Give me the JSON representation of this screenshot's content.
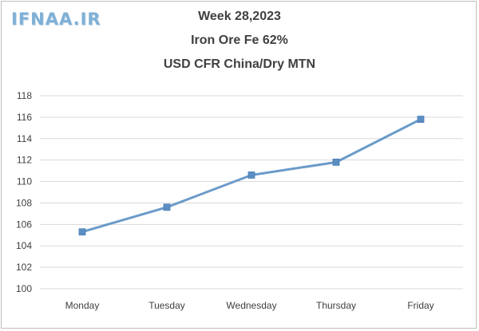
{
  "watermark": "IFNAA.IR",
  "chart_data": {
    "type": "line",
    "title_lines": [
      "Week 28,2023",
      "Iron Ore Fe 62%",
      "USD CFR China/Dry MTN"
    ],
    "categories": [
      "Monday",
      "Tuesday",
      "Wednesday",
      "Thursday",
      "Friday"
    ],
    "series": [
      {
        "values": [
          105.3,
          107.6,
          110.6,
          111.8,
          115.8
        ]
      }
    ],
    "ylim": [
      100,
      118
    ],
    "yticks": [
      "100",
      "102",
      "104",
      "106",
      "108",
      "110",
      "112",
      "114",
      "116",
      "118"
    ],
    "grid": true,
    "line_color": "#6b9bc9",
    "marker_color": "#5b8fc4"
  }
}
